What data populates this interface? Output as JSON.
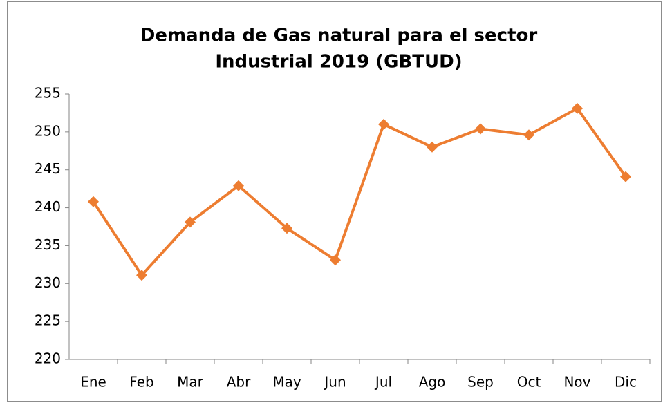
{
  "chart_data": {
    "type": "line",
    "title": [
      "Demanda de Gas natural para el sector",
      "Industrial 2019 (GBTUD)"
    ],
    "categories": [
      "Ene",
      "Feb",
      "Mar",
      "Abr",
      "May",
      "Jun",
      "Jul",
      "Ago",
      "Sep",
      "Oct",
      "Nov",
      "Dic"
    ],
    "series": [
      {
        "name": "Demanda",
        "color": "#ed7d31",
        "values": [
          240.8,
          231.1,
          238.1,
          242.9,
          237.3,
          233.1,
          251.0,
          248.0,
          250.4,
          249.6,
          253.1,
          244.1
        ]
      }
    ],
    "ylim": [
      220,
      255
    ],
    "yticks": [
      220,
      225,
      230,
      235,
      240,
      245,
      250,
      255
    ],
    "grid": false,
    "legend": false
  }
}
